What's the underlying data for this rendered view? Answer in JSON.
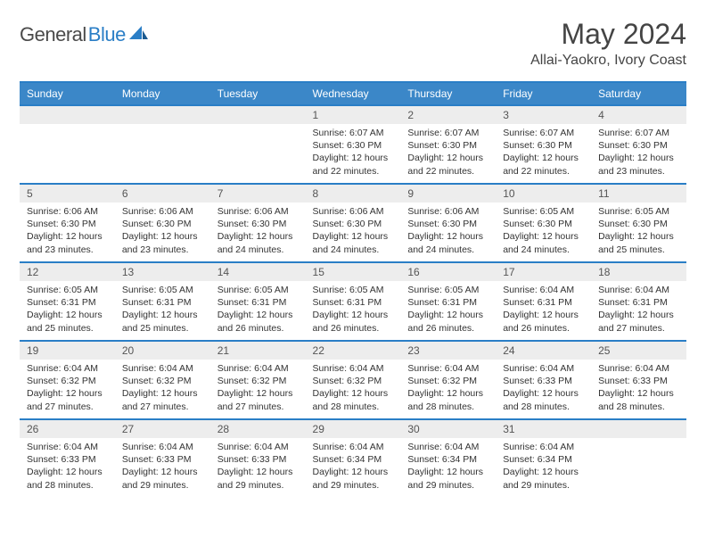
{
  "brand": {
    "part1": "General",
    "part2": "Blue"
  },
  "title": "May 2024",
  "location": "Allai-Yaokro, Ivory Coast",
  "colors": {
    "header_bg": "#3b87c8",
    "header_border": "#2a7ec6",
    "daynum_bg": "#ededed",
    "text": "#333333",
    "logo_gray": "#4a4a4a",
    "logo_blue": "#2a7ec6",
    "background": "#ffffff"
  },
  "weekdays": [
    "Sunday",
    "Monday",
    "Tuesday",
    "Wednesday",
    "Thursday",
    "Friday",
    "Saturday"
  ],
  "weeks": [
    [
      null,
      null,
      null,
      {
        "d": "1",
        "sr": "6:07 AM",
        "ss": "6:30 PM",
        "dl": "12 hours and 22 minutes."
      },
      {
        "d": "2",
        "sr": "6:07 AM",
        "ss": "6:30 PM",
        "dl": "12 hours and 22 minutes."
      },
      {
        "d": "3",
        "sr": "6:07 AM",
        "ss": "6:30 PM",
        "dl": "12 hours and 22 minutes."
      },
      {
        "d": "4",
        "sr": "6:07 AM",
        "ss": "6:30 PM",
        "dl": "12 hours and 23 minutes."
      }
    ],
    [
      {
        "d": "5",
        "sr": "6:06 AM",
        "ss": "6:30 PM",
        "dl": "12 hours and 23 minutes."
      },
      {
        "d": "6",
        "sr": "6:06 AM",
        "ss": "6:30 PM",
        "dl": "12 hours and 23 minutes."
      },
      {
        "d": "7",
        "sr": "6:06 AM",
        "ss": "6:30 PM",
        "dl": "12 hours and 24 minutes."
      },
      {
        "d": "8",
        "sr": "6:06 AM",
        "ss": "6:30 PM",
        "dl": "12 hours and 24 minutes."
      },
      {
        "d": "9",
        "sr": "6:06 AM",
        "ss": "6:30 PM",
        "dl": "12 hours and 24 minutes."
      },
      {
        "d": "10",
        "sr": "6:05 AM",
        "ss": "6:30 PM",
        "dl": "12 hours and 24 minutes."
      },
      {
        "d": "11",
        "sr": "6:05 AM",
        "ss": "6:30 PM",
        "dl": "12 hours and 25 minutes."
      }
    ],
    [
      {
        "d": "12",
        "sr": "6:05 AM",
        "ss": "6:31 PM",
        "dl": "12 hours and 25 minutes."
      },
      {
        "d": "13",
        "sr": "6:05 AM",
        "ss": "6:31 PM",
        "dl": "12 hours and 25 minutes."
      },
      {
        "d": "14",
        "sr": "6:05 AM",
        "ss": "6:31 PM",
        "dl": "12 hours and 26 minutes."
      },
      {
        "d": "15",
        "sr": "6:05 AM",
        "ss": "6:31 PM",
        "dl": "12 hours and 26 minutes."
      },
      {
        "d": "16",
        "sr": "6:05 AM",
        "ss": "6:31 PM",
        "dl": "12 hours and 26 minutes."
      },
      {
        "d": "17",
        "sr": "6:04 AM",
        "ss": "6:31 PM",
        "dl": "12 hours and 26 minutes."
      },
      {
        "d": "18",
        "sr": "6:04 AM",
        "ss": "6:31 PM",
        "dl": "12 hours and 27 minutes."
      }
    ],
    [
      {
        "d": "19",
        "sr": "6:04 AM",
        "ss": "6:32 PM",
        "dl": "12 hours and 27 minutes."
      },
      {
        "d": "20",
        "sr": "6:04 AM",
        "ss": "6:32 PM",
        "dl": "12 hours and 27 minutes."
      },
      {
        "d": "21",
        "sr": "6:04 AM",
        "ss": "6:32 PM",
        "dl": "12 hours and 27 minutes."
      },
      {
        "d": "22",
        "sr": "6:04 AM",
        "ss": "6:32 PM",
        "dl": "12 hours and 28 minutes."
      },
      {
        "d": "23",
        "sr": "6:04 AM",
        "ss": "6:32 PM",
        "dl": "12 hours and 28 minutes."
      },
      {
        "d": "24",
        "sr": "6:04 AM",
        "ss": "6:33 PM",
        "dl": "12 hours and 28 minutes."
      },
      {
        "d": "25",
        "sr": "6:04 AM",
        "ss": "6:33 PM",
        "dl": "12 hours and 28 minutes."
      }
    ],
    [
      {
        "d": "26",
        "sr": "6:04 AM",
        "ss": "6:33 PM",
        "dl": "12 hours and 28 minutes."
      },
      {
        "d": "27",
        "sr": "6:04 AM",
        "ss": "6:33 PM",
        "dl": "12 hours and 29 minutes."
      },
      {
        "d": "28",
        "sr": "6:04 AM",
        "ss": "6:33 PM",
        "dl": "12 hours and 29 minutes."
      },
      {
        "d": "29",
        "sr": "6:04 AM",
        "ss": "6:34 PM",
        "dl": "12 hours and 29 minutes."
      },
      {
        "d": "30",
        "sr": "6:04 AM",
        "ss": "6:34 PM",
        "dl": "12 hours and 29 minutes."
      },
      {
        "d": "31",
        "sr": "6:04 AM",
        "ss": "6:34 PM",
        "dl": "12 hours and 29 minutes."
      },
      null
    ]
  ],
  "labels": {
    "sunrise": "Sunrise:",
    "sunset": "Sunset:",
    "daylight": "Daylight:"
  }
}
